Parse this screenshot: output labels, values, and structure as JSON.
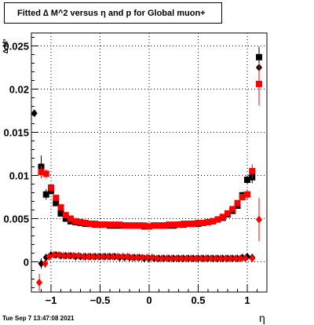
{
  "chart_data": {
    "type": "scatter",
    "title": "Fitted ∆ M^2 versus η and p for Global muon+",
    "xlabel": "η",
    "ylabel": "∆ M²",
    "xlim": [
      -1.2,
      1.2
    ],
    "ylim": [
      -0.0035,
      0.0265
    ],
    "grid": true,
    "x_ticks": [
      -1,
      -0.5,
      0,
      0.5,
      1
    ],
    "x_tick_labels": [
      "−1",
      "−0.5",
      "0",
      "0.5",
      "1"
    ],
    "y_ticks": [
      0,
      0.005,
      0.01,
      0.015,
      0.02,
      0.025
    ],
    "y_tick_labels": [
      "0",
      "0.005",
      "0.01",
      "0.015",
      "0.02",
      "0.025"
    ],
    "colors": {
      "black_series": "#000000",
      "red_series": "#ff0000"
    },
    "series": [
      {
        "color": "black",
        "marker": "square",
        "x": [
          -1.1,
          -1.05,
          -1.0,
          -0.95,
          -0.9,
          -0.85,
          -0.8,
          -0.75,
          -0.7,
          -0.65,
          -0.6,
          -0.55,
          -0.5,
          -0.45,
          -0.4,
          -0.35,
          -0.3,
          -0.25,
          -0.2,
          -0.15,
          -0.1,
          -0.05,
          0.0,
          0.05,
          0.1,
          0.15,
          0.2,
          0.25,
          0.3,
          0.35,
          0.4,
          0.45,
          0.5,
          0.55,
          0.6,
          0.65,
          0.7,
          0.75,
          0.8,
          0.85,
          0.9,
          0.95,
          1.0,
          1.05,
          1.12
        ],
        "y": [
          0.011,
          0.0078,
          0.0082,
          0.0068,
          0.0056,
          0.005,
          0.0047,
          0.0046,
          0.0045,
          0.0044,
          0.0044,
          0.0043,
          0.0043,
          0.0043,
          0.0042,
          0.0042,
          0.0042,
          0.0042,
          0.0042,
          0.0042,
          0.0042,
          0.0041,
          0.0041,
          0.0042,
          0.0042,
          0.0042,
          0.0042,
          0.0042,
          0.0043,
          0.0043,
          0.0044,
          0.0044,
          0.0044,
          0.0045,
          0.0046,
          0.0047,
          0.0049,
          0.0051,
          0.0055,
          0.0059,
          0.0065,
          0.0077,
          0.0095,
          0.0098,
          0.0237
        ],
        "error": [
          0.0013,
          0.0006,
          0.0004,
          0.0003,
          0.0002,
          0.0002,
          0.0001,
          0.0001,
          0.0001,
          0.0001,
          0.0001,
          0.0001,
          0.0001,
          0.0001,
          0.0001,
          0.0001,
          0.0001,
          0.0001,
          0.0001,
          0.0001,
          0.0001,
          0.0001,
          0.0001,
          0.0001,
          0.0001,
          0.0001,
          0.0001,
          0.0001,
          0.0001,
          0.0001,
          0.0001,
          0.0001,
          0.0001,
          0.0001,
          0.0001,
          0.0001,
          0.0001,
          0.0002,
          0.0002,
          0.0003,
          0.0003,
          0.0004,
          0.0005,
          0.0007,
          0.0012
        ]
      },
      {
        "color": "black",
        "marker": "diamond",
        "x": [
          -1.17,
          -1.1,
          -1.05,
          -1.0,
          -0.95,
          -0.9,
          -0.85,
          -0.8,
          -0.75,
          -0.7,
          -0.65,
          -0.6,
          -0.55,
          -0.5,
          -0.45,
          -0.4,
          -0.35,
          -0.3,
          -0.25,
          -0.2,
          -0.15,
          -0.1,
          -0.05,
          0.0,
          0.05,
          0.1,
          0.15,
          0.2,
          0.25,
          0.3,
          0.35,
          0.4,
          0.45,
          0.5,
          0.55,
          0.6,
          0.65,
          0.7,
          0.75,
          0.8,
          0.85,
          0.9,
          0.95,
          1.0,
          1.05,
          1.12
        ],
        "y": [
          0.0172,
          -0.0002,
          0.0005,
          0.0008,
          0.0008,
          0.0007,
          0.0007,
          0.0007,
          0.0006,
          0.0006,
          0.0006,
          0.0006,
          0.0006,
          0.0006,
          0.0006,
          0.0006,
          0.0006,
          0.0005,
          0.0005,
          0.0005,
          0.0005,
          0.0005,
          0.0004,
          0.0004,
          0.0004,
          0.0004,
          0.0004,
          0.0004,
          0.0004,
          0.0004,
          0.0004,
          0.0004,
          0.0004,
          0.0004,
          0.0004,
          0.0004,
          0.0004,
          0.0004,
          0.0004,
          0.0004,
          0.0004,
          0.0004,
          0.0005,
          0.0006,
          0.0005,
          0.0225
        ],
        "error": [
          0.0002,
          0.0006,
          0.0003,
          0.0002,
          0.0001,
          0.0001,
          0.0001,
          0.0001,
          0.0001,
          0.0001,
          0.0001,
          0.0001,
          0.0001,
          0.0001,
          0.0001,
          0.0001,
          0.0001,
          0.0001,
          0.0001,
          0.0001,
          0.0001,
          0.0001,
          0.0001,
          0.0001,
          0.0001,
          0.0001,
          0.0001,
          0.0001,
          0.0001,
          0.0001,
          0.0001,
          0.0001,
          0.0001,
          0.0001,
          0.0001,
          0.0001,
          0.0001,
          0.0001,
          0.0001,
          0.0001,
          0.0001,
          0.0001,
          0.0002,
          0.0002,
          0.0003,
          0.0008
        ]
      },
      {
        "color": "red",
        "marker": "square",
        "x": [
          -1.1,
          -1.05,
          -1.0,
          -0.95,
          -0.9,
          -0.85,
          -0.8,
          -0.75,
          -0.7,
          -0.65,
          -0.6,
          -0.55,
          -0.5,
          -0.45,
          -0.4,
          -0.35,
          -0.3,
          -0.25,
          -0.2,
          -0.15,
          -0.1,
          -0.05,
          0.0,
          0.05,
          0.1,
          0.15,
          0.2,
          0.25,
          0.3,
          0.35,
          0.4,
          0.45,
          0.5,
          0.55,
          0.6,
          0.65,
          0.7,
          0.75,
          0.8,
          0.85,
          0.9,
          0.95,
          1.0,
          1.05,
          1.12
        ],
        "y": [
          0.0104,
          0.0102,
          0.0086,
          0.0074,
          0.0063,
          0.0054,
          0.005,
          0.0047,
          0.0046,
          0.0045,
          0.0044,
          0.0044,
          0.0043,
          0.0043,
          0.0043,
          0.0043,
          0.0043,
          0.0042,
          0.0042,
          0.0042,
          0.0042,
          0.0042,
          0.0041,
          0.0042,
          0.0042,
          0.0042,
          0.0043,
          0.0043,
          0.0043,
          0.0044,
          0.0044,
          0.0044,
          0.0045,
          0.0045,
          0.0046,
          0.0047,
          0.0049,
          0.0052,
          0.0056,
          0.0061,
          0.0068,
          0.0075,
          0.0078,
          0.0105,
          0.0206
        ],
        "error": [
          0.0007,
          0.0005,
          0.0004,
          0.0003,
          0.0002,
          0.0002,
          0.0001,
          0.0001,
          0.0001,
          0.0001,
          0.0001,
          0.0001,
          0.0001,
          0.0001,
          0.0001,
          0.0001,
          0.0001,
          0.0001,
          0.0001,
          0.0001,
          0.0001,
          0.0001,
          0.0001,
          0.0001,
          0.0001,
          0.0001,
          0.0001,
          0.0001,
          0.0001,
          0.0001,
          0.0001,
          0.0001,
          0.0001,
          0.0001,
          0.0001,
          0.0001,
          0.0001,
          0.0002,
          0.0002,
          0.0003,
          0.0003,
          0.0004,
          0.0006,
          0.0008,
          0.0025
        ]
      },
      {
        "color": "red",
        "marker": "diamond",
        "x": [
          -1.12,
          -1.06,
          -1.02,
          -0.97,
          -0.92,
          -0.87,
          -0.82,
          -0.77,
          -0.72,
          -0.67,
          -0.62,
          -0.57,
          -0.52,
          -0.47,
          -0.42,
          -0.37,
          -0.32,
          -0.27,
          -0.22,
          -0.17,
          -0.12,
          -0.07,
          -0.02,
          0.03,
          0.08,
          0.13,
          0.18,
          0.23,
          0.28,
          0.33,
          0.38,
          0.43,
          0.48,
          0.53,
          0.58,
          0.63,
          0.68,
          0.73,
          0.78,
          0.83,
          0.88,
          0.93,
          0.98,
          1.05,
          1.12
        ],
        "y": [
          -0.0024,
          -0.0002,
          0.0006,
          0.0008,
          0.0008,
          0.0007,
          0.0007,
          0.0007,
          0.0007,
          0.0006,
          0.0006,
          0.0006,
          0.0006,
          0.0006,
          0.0006,
          0.0006,
          0.0006,
          0.0006,
          0.0006,
          0.0005,
          0.0005,
          0.0005,
          0.0005,
          0.0005,
          0.0004,
          0.0004,
          0.0004,
          0.0004,
          0.0004,
          0.0004,
          0.0004,
          0.0004,
          0.0004,
          0.0004,
          0.0004,
          0.0004,
          0.0004,
          0.0004,
          0.0004,
          0.0004,
          0.0004,
          0.0004,
          0.0004,
          0.0004,
          0.0049
        ],
        "error": [
          0.001,
          0.0005,
          0.0003,
          0.0002,
          0.0001,
          0.0001,
          0.0001,
          0.0001,
          0.0001,
          0.0001,
          0.0001,
          0.0001,
          0.0001,
          0.0001,
          0.0001,
          0.0001,
          0.0001,
          0.0001,
          0.0001,
          0.0001,
          0.0001,
          0.0001,
          0.0001,
          0.0001,
          0.0001,
          0.0001,
          0.0001,
          0.0001,
          0.0001,
          0.0001,
          0.0001,
          0.0001,
          0.0001,
          0.0001,
          0.0001,
          0.0001,
          0.0001,
          0.0001,
          0.0001,
          0.0001,
          0.0001,
          0.0001,
          0.0002,
          0.0003,
          0.0025
        ]
      }
    ]
  },
  "footer": {
    "timestamp": "Tue Sep  7 13:47:08 2021"
  }
}
